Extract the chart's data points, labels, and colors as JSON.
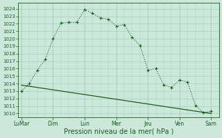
{
  "bg_color": "#cce8dc",
  "grid_color": "#aaccbb",
  "line_color": "#1a5c1a",
  "xlabel": "Pression niveau de la mer( hPa )",
  "xlabel_fontsize": 7,
  "yticks": [
    1010,
    1011,
    1012,
    1013,
    1014,
    1015,
    1016,
    1017,
    1018,
    1019,
    1020,
    1021,
    1022,
    1023,
    1024
  ],
  "xtick_labels": [
    "LuMar",
    "Dim",
    "Lun",
    "Mer",
    "Jeu",
    "Ven",
    "Sam"
  ],
  "xtick_positions": [
    0,
    2,
    4,
    6,
    8,
    10,
    12
  ],
  "ylim": [
    1009.5,
    1024.8
  ],
  "xlim": [
    -0.2,
    12.5
  ],
  "series1_x": [
    0,
    0.5,
    1.0,
    1.5,
    2.0,
    2.5,
    3.0,
    3.5,
    4.0,
    4.5,
    5.0,
    5.5,
    6.0,
    6.5,
    7.0,
    7.5,
    8.0,
    8.5,
    9.0,
    9.5,
    10.0,
    10.5,
    11.0,
    11.5,
    12.0
  ],
  "series1_y": [
    1013.0,
    1014.0,
    1015.8,
    1017.2,
    1020.0,
    1022.1,
    1022.2,
    1022.2,
    1023.9,
    1023.4,
    1022.8,
    1022.6,
    1021.7,
    1021.9,
    1020.2,
    1019.1,
    1015.8,
    1016.0,
    1013.8,
    1013.5,
    1014.5,
    1014.2,
    1011.1,
    1010.1,
    1010.3
  ],
  "series2_x": [
    0,
    12
  ],
  "series2_y": [
    1013.8,
    1010.0
  ]
}
